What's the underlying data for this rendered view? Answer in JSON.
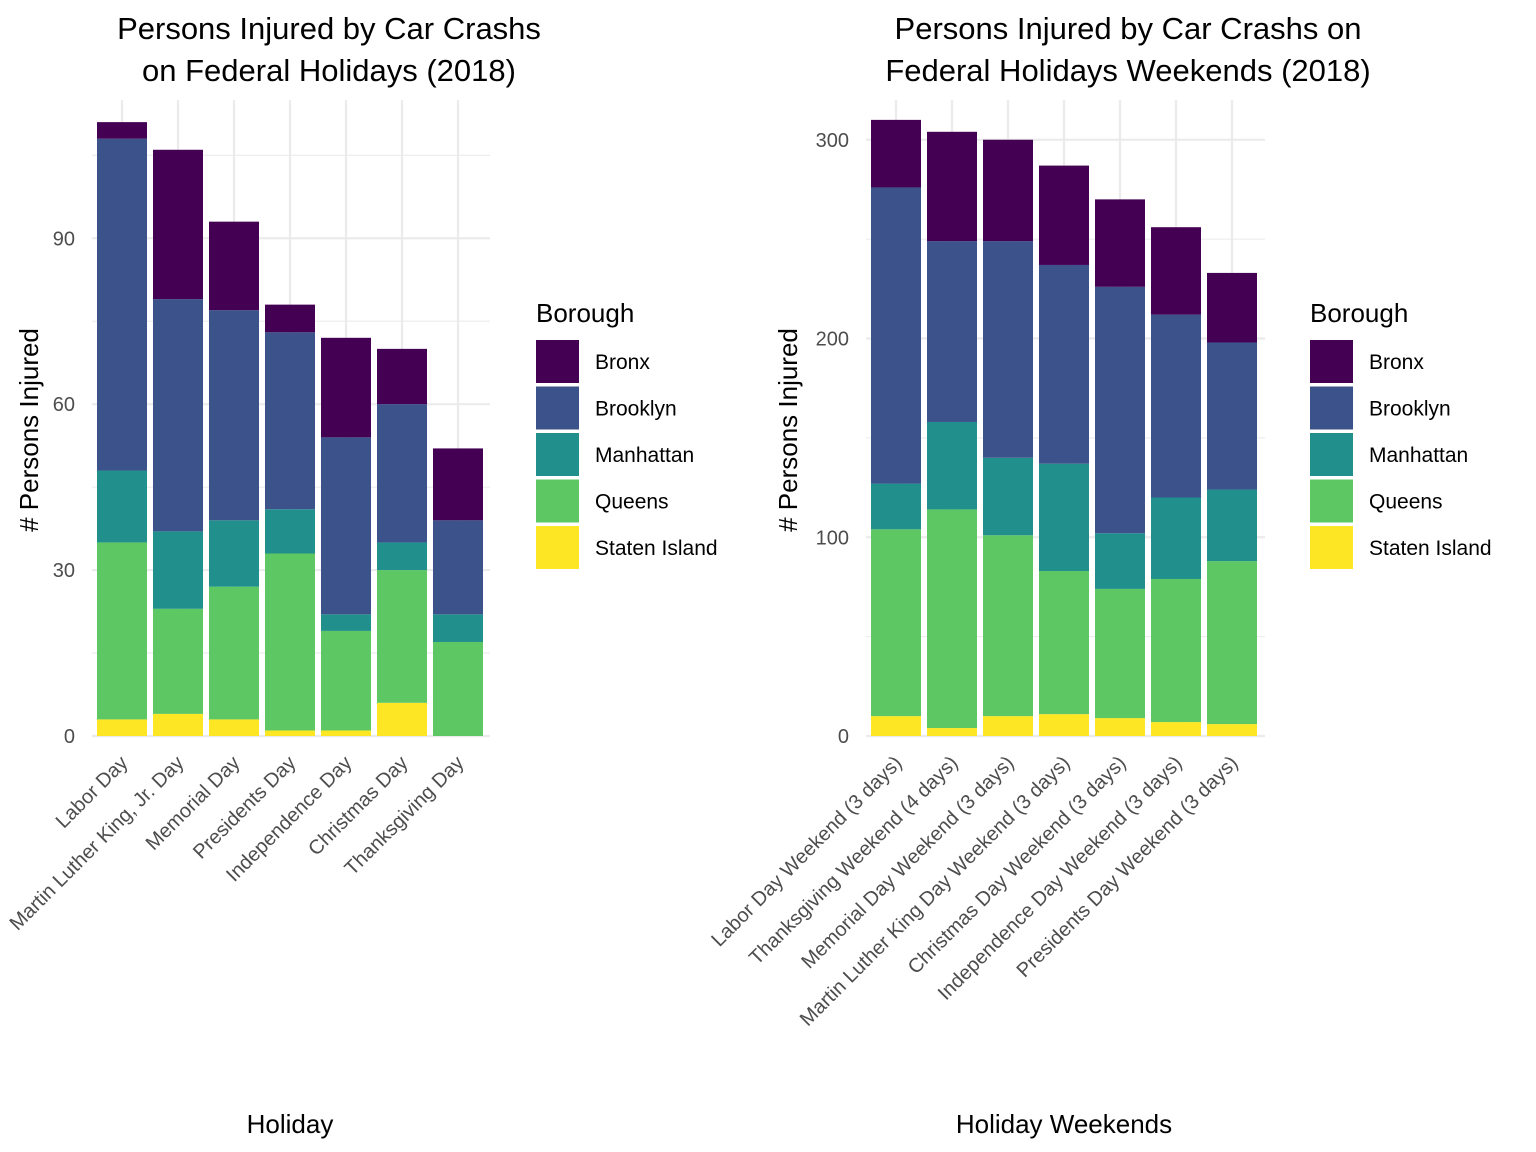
{
  "legend": {
    "title": "Borough",
    "entries": [
      "Bronx",
      "Brooklyn",
      "Manhattan",
      "Queens",
      "Staten Island"
    ],
    "colors": {
      "Bronx": "#440154",
      "Brooklyn": "#3b528b",
      "Manhattan": "#21908c",
      "Queens": "#5dc863",
      "Staten Island": "#fde725"
    }
  },
  "chart_data": [
    {
      "type": "bar",
      "stacked": true,
      "title": "Persons Injured by Car Crashs\n on Federal Holidays (2018)",
      "xlabel": "Holiday",
      "ylabel": "# Persons Injured",
      "ylim": [
        0,
        115
      ],
      "yticks": [
        0,
        30,
        60,
        90
      ],
      "grid": true,
      "legend_position": "right",
      "categories": [
        "Labor Day",
        "Martin Luther King, Jr. Day",
        "Memorial Day",
        "Presidents Day",
        "Independence Day",
        "Christmas Day",
        "Thanksgiving Day"
      ],
      "series": [
        {
          "name": "Staten Island",
          "values": [
            3,
            4,
            3,
            1,
            1,
            6,
            0
          ]
        },
        {
          "name": "Queens",
          "values": [
            32,
            19,
            24,
            32,
            18,
            24,
            17
          ]
        },
        {
          "name": "Manhattan",
          "values": [
            13,
            14,
            12,
            8,
            3,
            5,
            5
          ]
        },
        {
          "name": "Brooklyn",
          "values": [
            60,
            42,
            38,
            32,
            32,
            25,
            17
          ]
        },
        {
          "name": "Bronx",
          "values": [
            3,
            27,
            16,
            5,
            18,
            10,
            13
          ]
        }
      ]
    },
    {
      "type": "bar",
      "stacked": true,
      "title": "Persons Injured by Car Crashs on\n Federal Holidays Weekends (2018)",
      "xlabel": "Holiday Weekends",
      "ylabel": "# Persons Injured",
      "ylim": [
        0,
        320
      ],
      "yticks": [
        0,
        100,
        200,
        300
      ],
      "grid": true,
      "legend_position": "right",
      "categories": [
        "Labor Day Weekend (3 days)",
        "Thanksgiving Weekend (4 days)",
        "Memorial Day Weekend (3 days)",
        "Martin Luther King Day Weekend (3 days)",
        "Christmas Day Weekend (3 days)",
        "Independence Day Weekend (3 days)",
        "Presidents Day Weekend (3 days)"
      ],
      "series": [
        {
          "name": "Staten Island",
          "values": [
            10,
            4,
            10,
            11,
            9,
            7,
            6
          ]
        },
        {
          "name": "Queens",
          "values": [
            94,
            110,
            91,
            72,
            65,
            72,
            82
          ]
        },
        {
          "name": "Manhattan",
          "values": [
            23,
            44,
            39,
            54,
            28,
            41,
            36
          ]
        },
        {
          "name": "Brooklyn",
          "values": [
            149,
            91,
            109,
            100,
            124,
            92,
            74
          ]
        },
        {
          "name": "Bronx",
          "values": [
            34,
            55,
            51,
            50,
            44,
            44,
            35
          ]
        }
      ]
    }
  ]
}
